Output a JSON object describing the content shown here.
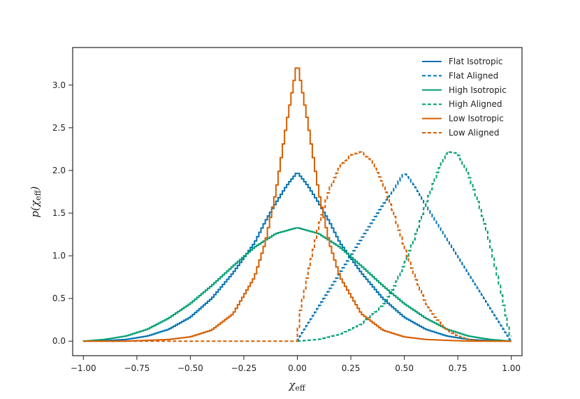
{
  "chart_data": {
    "type": "line",
    "title": "",
    "xlabel": "χ",
    "xlabel_sub": "eff",
    "ylabel_pre": "p(χ",
    "ylabel_sub": "eff",
    "ylabel_post": ")",
    "xlim": [
      -1.05,
      1.05
    ],
    "ylim": [
      -0.17,
      3.44
    ],
    "xticks": [
      -1.0,
      -0.75,
      -0.5,
      -0.25,
      0.0,
      0.25,
      0.5,
      0.75,
      1.0
    ],
    "xtick_labels": [
      "−1.00",
      "−0.75",
      "−0.50",
      "−0.25",
      "0.00",
      "0.25",
      "0.50",
      "0.75",
      "1.00"
    ],
    "yticks": [
      0.0,
      0.5,
      1.0,
      1.5,
      2.0,
      2.5,
      3.0
    ],
    "ytick_labels": [
      "0.0",
      "0.5",
      "1.0",
      "1.5",
      "2.0",
      "2.5",
      "3.0"
    ],
    "grid": false,
    "legend_position": "top-right",
    "series": [
      {
        "name": "Flat Isotropic",
        "color": "#0072b2",
        "dash": "solid",
        "x": [
          -1.0,
          -0.9,
          -0.8,
          -0.7,
          -0.6,
          -0.5,
          -0.4,
          -0.3,
          -0.2,
          -0.15,
          -0.1,
          -0.05,
          0.0,
          0.05,
          0.1,
          0.15,
          0.2,
          0.3,
          0.4,
          0.5,
          0.6,
          0.7,
          0.8,
          0.9,
          1.0
        ],
        "y": [
          0.0,
          0.005,
          0.02,
          0.06,
          0.14,
          0.28,
          0.5,
          0.8,
          1.15,
          1.4,
          1.62,
          1.82,
          1.98,
          1.82,
          1.62,
          1.4,
          1.15,
          0.8,
          0.5,
          0.28,
          0.14,
          0.06,
          0.02,
          0.005,
          0.0
        ]
      },
      {
        "name": "Flat Aligned",
        "color": "#0072b2",
        "dash": "dashed",
        "x": [
          0.0,
          0.05,
          0.1,
          0.15,
          0.2,
          0.25,
          0.3,
          0.35,
          0.4,
          0.45,
          0.5,
          0.55,
          0.6,
          0.65,
          0.7,
          0.75,
          0.8,
          0.85,
          0.9,
          0.95,
          1.0
        ],
        "y": [
          0.0,
          0.2,
          0.4,
          0.6,
          0.8,
          1.0,
          1.2,
          1.4,
          1.6,
          1.78,
          1.97,
          1.82,
          1.6,
          1.4,
          1.2,
          1.0,
          0.8,
          0.6,
          0.4,
          0.2,
          0.0
        ]
      },
      {
        "name": "High Isotropic",
        "color": "#009e73",
        "dash": "solid",
        "x": [
          -1.0,
          -0.9,
          -0.8,
          -0.7,
          -0.6,
          -0.5,
          -0.4,
          -0.3,
          -0.2,
          -0.1,
          0.0,
          0.1,
          0.2,
          0.3,
          0.4,
          0.5,
          0.6,
          0.7,
          0.8,
          0.9,
          1.0
        ],
        "y": [
          0.0,
          0.02,
          0.06,
          0.14,
          0.27,
          0.44,
          0.65,
          0.88,
          1.1,
          1.26,
          1.33,
          1.26,
          1.1,
          0.88,
          0.65,
          0.44,
          0.27,
          0.14,
          0.06,
          0.02,
          0.0
        ]
      },
      {
        "name": "High Aligned",
        "color": "#009e73",
        "dash": "dashed",
        "x": [
          0.0,
          0.1,
          0.2,
          0.3,
          0.4,
          0.45,
          0.5,
          0.55,
          0.6,
          0.65,
          0.7,
          0.75,
          0.8,
          0.85,
          0.9,
          0.95,
          1.0
        ],
        "y": [
          0.0,
          0.02,
          0.08,
          0.2,
          0.42,
          0.62,
          0.9,
          1.22,
          1.6,
          1.95,
          2.22,
          2.2,
          1.95,
          1.6,
          1.15,
          0.6,
          0.0
        ]
      },
      {
        "name": "Low Isotropic",
        "color": "#d55e00",
        "dash": "solid",
        "x": [
          -1.0,
          -0.8,
          -0.6,
          -0.5,
          -0.4,
          -0.3,
          -0.2,
          -0.15,
          -0.1,
          -0.05,
          0.0,
          0.05,
          0.1,
          0.15,
          0.2,
          0.3,
          0.4,
          0.5,
          0.6,
          0.8,
          1.0
        ],
        "y": [
          0.0,
          0.0,
          0.02,
          0.05,
          0.13,
          0.32,
          0.75,
          1.15,
          1.75,
          2.55,
          3.27,
          2.55,
          1.75,
          1.15,
          0.75,
          0.32,
          0.13,
          0.05,
          0.02,
          0.0,
          0.0
        ]
      },
      {
        "name": "Low Aligned",
        "color": "#d55e00",
        "dash": "dashed",
        "x": [
          -1.0,
          0.0,
          0.01,
          0.05,
          0.1,
          0.15,
          0.2,
          0.25,
          0.3,
          0.35,
          0.4,
          0.45,
          0.5,
          0.55,
          0.6,
          0.65,
          0.7,
          0.75,
          0.8,
          0.85,
          0.9,
          1.0
        ],
        "y": [
          0.0,
          0.0,
          0.3,
          0.8,
          1.35,
          1.78,
          2.05,
          2.18,
          2.22,
          2.1,
          1.85,
          1.5,
          1.1,
          0.75,
          0.45,
          0.26,
          0.13,
          0.06,
          0.02,
          0.005,
          0.0,
          0.0
        ]
      }
    ]
  }
}
